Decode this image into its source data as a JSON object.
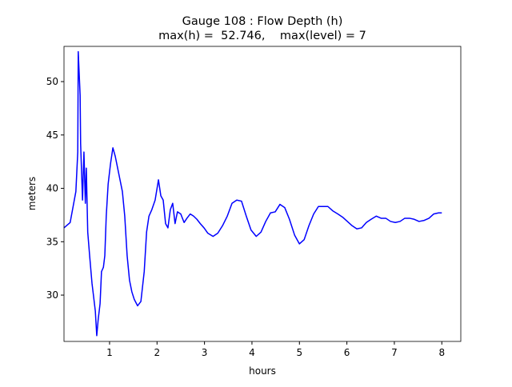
{
  "chart_data": {
    "type": "line",
    "title": [
      "Gauge 108 : Flow Depth (h)",
      "max(h) =  52.746,    max(level) = 7"
    ],
    "xlabel": "hours",
    "ylabel": "meters",
    "xlim": [
      0.04,
      8.4
    ],
    "ylim": [
      25.66,
      53.3
    ],
    "xticks": [
      1,
      2,
      3,
      4,
      5,
      6,
      7,
      8
    ],
    "yticks": [
      30,
      35,
      40,
      45,
      50
    ],
    "grid": false,
    "x": [
      0.04,
      0.17,
      0.29,
      0.33,
      0.34,
      0.38,
      0.39,
      0.43,
      0.46,
      0.49,
      0.51,
      0.54,
      0.58,
      0.63,
      0.66,
      0.7,
      0.73,
      0.76,
      0.8,
      0.83,
      0.87,
      0.9,
      0.93,
      0.97,
      1.02,
      1.07,
      1.12,
      1.17,
      1.22,
      1.27,
      1.32,
      1.37,
      1.42,
      1.47,
      1.52,
      1.59,
      1.66,
      1.73,
      1.78,
      1.83,
      1.89,
      1.96,
      2.03,
      2.08,
      2.13,
      2.18,
      2.23,
      2.28,
      2.33,
      2.38,
      2.43,
      2.5,
      2.57,
      2.63,
      2.7,
      2.77,
      2.84,
      2.91,
      2.99,
      3.07,
      3.18,
      3.28,
      3.38,
      3.48,
      3.58,
      3.68,
      3.78,
      3.88,
      3.98,
      4.09,
      4.19,
      4.29,
      4.39,
      4.49,
      4.59,
      4.69,
      4.79,
      4.9,
      5.0,
      5.1,
      5.2,
      5.3,
      5.4,
      5.5,
      5.6,
      5.7,
      5.81,
      5.91,
      6.01,
      6.11,
      6.21,
      6.31,
      6.41,
      6.51,
      6.62,
      6.72,
      6.82,
      6.92,
      7.02,
      7.12,
      7.22,
      7.32,
      7.42,
      7.52,
      7.63,
      7.73,
      7.83,
      7.93,
      8.0
    ],
    "series": [
      {
        "name": "h",
        "color": "#0000ff",
        "values": [
          36.3,
          36.8,
          39.7,
          43.4,
          52.8,
          48.7,
          44.2,
          38.9,
          43.4,
          38.6,
          41.9,
          35.9,
          33.7,
          31.1,
          30.0,
          28.5,
          26.2,
          27.7,
          29.2,
          32.2,
          32.6,
          33.7,
          37.4,
          40.4,
          42.3,
          43.8,
          43.0,
          41.9,
          40.8,
          39.7,
          37.4,
          33.7,
          31.4,
          30.3,
          29.6,
          29.0,
          29.4,
          32.2,
          35.9,
          37.4,
          38.0,
          38.9,
          40.8,
          39.3,
          38.9,
          36.7,
          36.3,
          38.0,
          38.6,
          36.7,
          37.8,
          37.6,
          36.8,
          37.2,
          37.6,
          37.4,
          37.1,
          36.7,
          36.3,
          35.8,
          35.5,
          35.8,
          36.5,
          37.4,
          38.6,
          38.9,
          38.8,
          37.4,
          36.1,
          35.5,
          35.9,
          36.9,
          37.7,
          37.8,
          38.5,
          38.2,
          37.1,
          35.6,
          34.8,
          35.2,
          36.5,
          37.6,
          38.3,
          38.3,
          38.3,
          37.9,
          37.6,
          37.3,
          36.9,
          36.5,
          36.2,
          36.3,
          36.8,
          37.1,
          37.4,
          37.2,
          37.2,
          36.9,
          36.8,
          36.9,
          37.2,
          37.2,
          37.1,
          36.9,
          37.0,
          37.2,
          37.6,
          37.7,
          37.7
        ]
      }
    ]
  }
}
